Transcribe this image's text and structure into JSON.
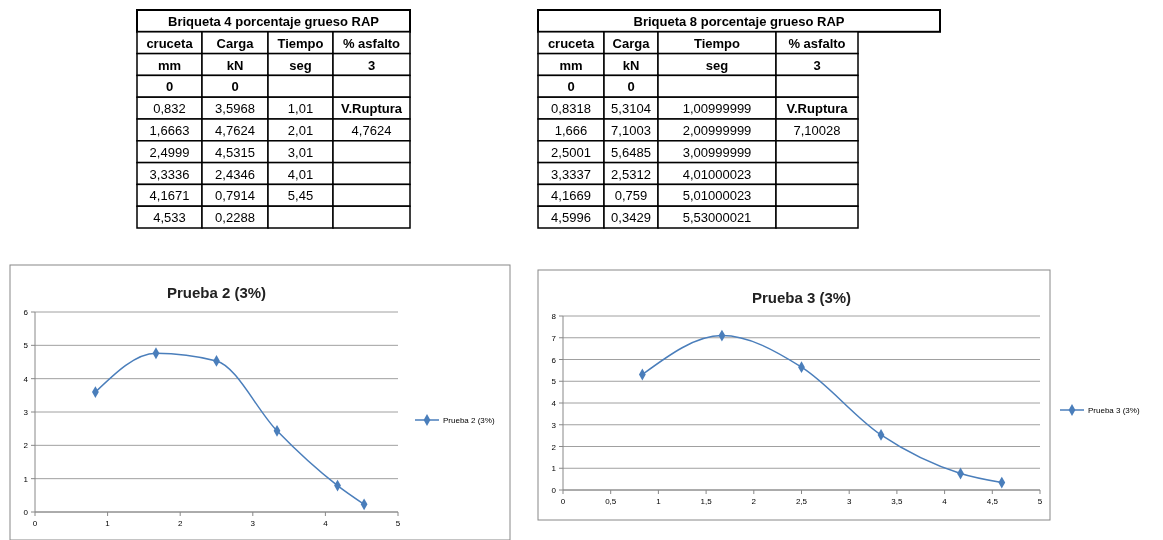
{
  "chart_data": [
    {
      "type": "other",
      "title": "Briqueta 4 porcentaje grueso RAP",
      "annotations": [
        "cruceta",
        "Carga",
        "Tiempo",
        "% asfalto",
        "mm",
        "kN",
        "seg",
        "3",
        "0",
        "0",
        null,
        null,
        "0,832",
        "3,5968",
        "1,01",
        "V.Ruptura",
        "1,6663",
        "4,7624",
        "2,01",
        "4,7624",
        "2,4999",
        "4,5315",
        "3,01",
        null,
        "3,3336",
        "2,4346",
        "4,01",
        null,
        "4,1671",
        "0,7914",
        "5,45",
        null,
        "4,533",
        "0,2288",
        null,
        null
      ]
    },
    {
      "type": "other",
      "title": "Briqueta 8 porcentaje grueso RAP",
      "annotations": [
        "cruceta",
        "Carga",
        "Tiempo",
        "% asfalto",
        "mm",
        "kN",
        "seg",
        "3",
        "0",
        "0",
        null,
        null,
        "0,8318",
        "5,3104",
        "1,00999999",
        "V.Ruptura",
        "1,666",
        "7,1003",
        "2,00999999",
        "7,10028",
        "2,5001",
        "5,6485",
        "3,00999999",
        null,
        "3,3337",
        "2,5312",
        "4,01000023",
        null,
        "4,1669",
        "0,759",
        "5,01000023",
        null,
        "4,5996",
        "0,3429",
        "5,53000021",
        null
      ]
    },
    {
      "type": "line",
      "title": "Prueba 2 (3%)",
      "x": [
        0.832,
        1.6663,
        2.4999,
        3.3336,
        4.1671,
        4.533
      ],
      "series": [
        {
          "name": "Prueba 2 (3%)",
          "color": "#4a7ebb",
          "values": [
            3.5968,
            4.7624,
            4.5315,
            2.4346,
            0.7914,
            0.2288
          ]
        }
      ],
      "xlim": [
        0,
        5
      ],
      "xticks": [
        0,
        1,
        2,
        3,
        4,
        5
      ],
      "ylim": [
        0,
        6
      ],
      "yticks": [
        0,
        1,
        2,
        3,
        4,
        5,
        6
      ],
      "grid": "y",
      "legend": "right",
      "marker": "diamond"
    },
    {
      "type": "line",
      "title": "Prueba 3 (3%)",
      "x": [
        0.8318,
        1.666,
        2.5001,
        3.3337,
        4.1669,
        4.5996
      ],
      "series": [
        {
          "name": "Prueba 3 (3%)",
          "color": "#4a7ebb",
          "values": [
            5.3104,
            7.1003,
            5.6485,
            2.5312,
            0.759,
            0.3429
          ]
        }
      ],
      "xlim": [
        0,
        5
      ],
      "xticks": [
        0,
        {
          "value": 0.5,
          "label": "0,5"
        },
        1,
        {
          "value": 1.5,
          "label": "1,5"
        },
        2,
        {
          "value": 2.5,
          "label": "2,5"
        },
        3,
        {
          "value": 3.5,
          "label": "3,5"
        },
        4,
        {
          "value": 4.5,
          "label": "4,5"
        },
        5
      ],
      "ylim": [
        0,
        8
      ],
      "yticks": [
        0,
        1,
        2,
        3,
        4,
        5,
        6,
        7,
        8
      ],
      "grid": "y",
      "legend": "right",
      "marker": "diamond"
    }
  ]
}
